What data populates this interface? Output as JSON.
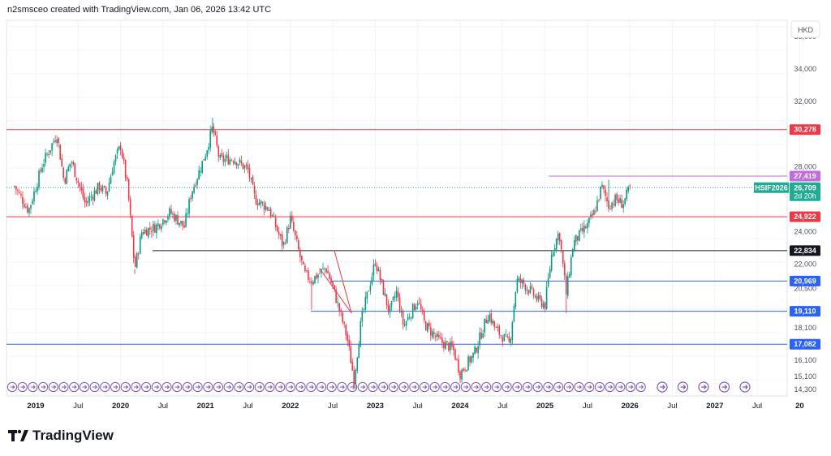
{
  "header": {
    "attribution": "n2smsceo created with TradingView.com, Jan 06, 2026 13:42 UTC"
  },
  "brand": {
    "name": "TradingView"
  },
  "currency_button": "HKD",
  "chart_data": {
    "type": "candlestick",
    "symbol": "HSIF2026",
    "currency": "HKD",
    "y_axis": {
      "ticks": [
        36000,
        34000,
        32000,
        28000,
        24000,
        22000,
        20500,
        18100,
        16100,
        15100,
        14300
      ],
      "range": [
        13900,
        37000
      ]
    },
    "x_axis": {
      "ticks": [
        "2019",
        "Jul",
        "2020",
        "Jul",
        "2021",
        "Jul",
        "2022",
        "Jul",
        "2023",
        "Jul",
        "2024",
        "Jul",
        "2025",
        "Jul",
        "2026",
        "Jul",
        "2027",
        "Jul",
        "20"
      ]
    },
    "last_price": {
      "value": "26,709",
      "countdown": "2d 20h",
      "color": "#22ab94"
    },
    "levels": [
      {
        "value": 30278,
        "label": "30,278",
        "color": "#f23645",
        "style": "full"
      },
      {
        "value": 27419,
        "label": "27,419",
        "color": "#c46be0",
        "style": "right"
      },
      {
        "value": 24922,
        "label": "24,922",
        "color": "#f23645",
        "style": "full"
      },
      {
        "value": 22834,
        "label": "22,834",
        "color": "#131722",
        "style": "partial"
      },
      {
        "value": 20969,
        "label": "20,969",
        "color": "#2962ff",
        "style": "partial"
      },
      {
        "value": 19110,
        "label": "19,110",
        "color": "#2962ff",
        "style": "partial"
      },
      {
        "value": 17082,
        "label": "17,082",
        "color": "#2962ff",
        "style": "full"
      }
    ],
    "price_path": [
      [
        "2018-10",
        26800
      ],
      [
        "2018-12",
        25300
      ],
      [
        "2019-02",
        28200
      ],
      [
        "2019-04",
        30000
      ],
      [
        "2019-05",
        27100
      ],
      [
        "2019-06",
        28400
      ],
      [
        "2019-08",
        25700
      ],
      [
        "2019-10",
        26800
      ],
      [
        "2019-11",
        26300
      ],
      [
        "2019-12",
        28200
      ],
      [
        "2020-01",
        29300
      ],
      [
        "2020-02",
        26700
      ],
      [
        "2020-03",
        21700
      ],
      [
        "2020-04",
        24000
      ],
      [
        "2020-06",
        24300
      ],
      [
        "2020-08",
        25200
      ],
      [
        "2020-10",
        24300
      ],
      [
        "2020-11",
        26400
      ],
      [
        "2021-01",
        28800
      ],
      [
        "2021-02",
        30400
      ],
      [
        "2021-03",
        28400
      ],
      [
        "2021-05",
        28500
      ],
      [
        "2021-07",
        27800
      ],
      [
        "2021-08",
        26000
      ],
      [
        "2021-10",
        25400
      ],
      [
        "2021-12",
        23100
      ],
      [
        "2022-01",
        24800
      ],
      [
        "2022-03",
        21400
      ],
      [
        "2022-04",
        21000
      ],
      [
        "2022-06",
        21800
      ],
      [
        "2022-07",
        20600
      ],
      [
        "2022-09",
        17500
      ],
      [
        "2022-10",
        14900
      ],
      [
        "2022-11",
        18500
      ],
      [
        "2023-01",
        22200
      ],
      [
        "2023-03",
        19000
      ],
      [
        "2023-04",
        20300
      ],
      [
        "2023-05",
        18200
      ],
      [
        "2023-07",
        19800
      ],
      [
        "2023-08",
        18300
      ],
      [
        "2023-10",
        17300
      ],
      [
        "2023-12",
        16800
      ],
      [
        "2024-01",
        15300
      ],
      [
        "2024-03",
        16500
      ],
      [
        "2024-05",
        19000
      ],
      [
        "2024-06",
        18000
      ],
      [
        "2024-08",
        17100
      ],
      [
        "2024-09",
        21000
      ],
      [
        "2024-10",
        20800
      ],
      [
        "2024-12",
        19800
      ],
      [
        "2025-01",
        19500
      ],
      [
        "2025-02",
        22800
      ],
      [
        "2025-03",
        24000
      ],
      [
        "2025-04",
        20200
      ],
      [
        "2025-05",
        23300
      ],
      [
        "2025-07",
        24400
      ],
      [
        "2025-08",
        25200
      ],
      [
        "2025-09",
        26800
      ],
      [
        "2025-10",
        25600
      ],
      [
        "2025-11",
        26000
      ],
      [
        "2025-12",
        25700
      ],
      [
        "2026-01",
        26709
      ]
    ],
    "wicks": [
      {
        "date": "2020-03",
        "low": 21400
      },
      {
        "date": "2021-02",
        "high": 31000
      },
      {
        "date": "2022-04",
        "low": 19200
      },
      {
        "date": "2022-10",
        "low": 14600
      },
      {
        "date": "2024-01",
        "low": 14800
      },
      {
        "date": "2025-04",
        "low": 19000
      },
      {
        "date": "2025-10",
        "high": 27200
      }
    ],
    "event_markers": {
      "filled_count": 62,
      "future_count": 5
    }
  }
}
